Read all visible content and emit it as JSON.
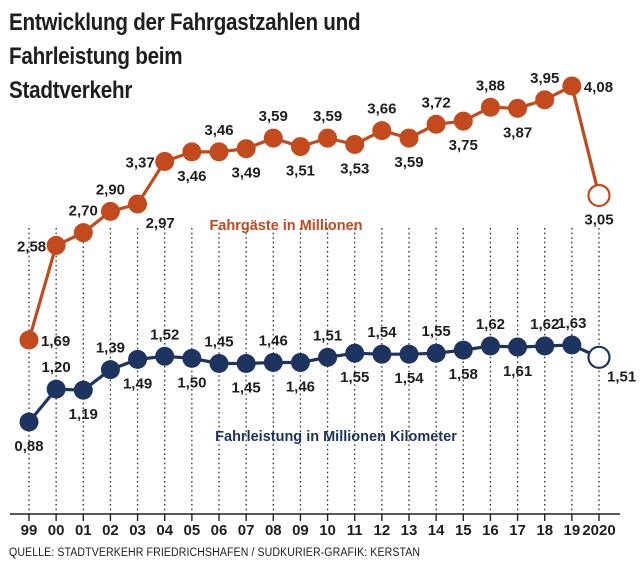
{
  "title_lines": [
    "Entwicklung der Fahrgastzahlen und",
    "Fahrleistung beim",
    "Stadtverkehr"
  ],
  "source": "QUELLE: STADTVERKEHR FRIEDRICHSHAFEN / SÜDKURIER-GRAFIK: KERSTAN",
  "colors": {
    "passengers": "#c24a1c",
    "mileage": "#1d3461",
    "grid": "#333333"
  },
  "chart_data": {
    "type": "line",
    "title": "Entwicklung der Fahrgastzahlen und Fahrleistung beim Stadtverkehr",
    "xlabel": "",
    "ylabel": "",
    "categories": [
      "99",
      "00",
      "01",
      "02",
      "03",
      "04",
      "05",
      "06",
      "07",
      "08",
      "09",
      "10",
      "11",
      "12",
      "13",
      "14",
      "15",
      "16",
      "17",
      "18",
      "19",
      "2020"
    ],
    "series": [
      {
        "name": "Fahrgäste in Millionen",
        "values": [
          1.69,
          2.58,
          2.7,
          2.9,
          2.97,
          3.37,
          3.46,
          3.46,
          3.49,
          3.59,
          3.51,
          3.59,
          3.53,
          3.66,
          3.59,
          3.72,
          3.75,
          3.88,
          3.87,
          3.95,
          4.08,
          3.05
        ],
        "labels": [
          "1,69",
          "2,58",
          "2,70",
          "2,90",
          "2,97",
          "3,37",
          "3,46",
          "3,46",
          "3,49",
          "3,59",
          "3,51",
          "3,59",
          "3,53",
          "3,66",
          "3,59",
          "3,72",
          "3,75",
          "3,88",
          "3,87",
          "3,95",
          "4,08",
          "3,05"
        ],
        "label_position": [
          "right",
          "left",
          "above",
          "above",
          "below-right",
          "left",
          "below",
          "above",
          "below",
          "above",
          "below",
          "above",
          "below",
          "above",
          "below",
          "above",
          "below",
          "above",
          "below",
          "above",
          "right",
          "below"
        ],
        "hollow_last": true
      },
      {
        "name": "Fahrleistung in Millionen Kilometer",
        "values": [
          0.88,
          1.2,
          1.19,
          1.39,
          1.49,
          1.52,
          1.5,
          1.45,
          1.45,
          1.46,
          1.46,
          1.51,
          1.55,
          1.54,
          1.54,
          1.55,
          1.58,
          1.62,
          1.61,
          1.62,
          1.63,
          1.51
        ],
        "labels": [
          "0,88",
          "1,20",
          "1,19",
          "1,39",
          "1,49",
          "1,52",
          "1,50",
          "1,45",
          "1,45",
          "1,46",
          "1,46",
          "1,51",
          "1,55",
          "1,54",
          "1,54",
          "1,55",
          "1,58",
          "1,62",
          "1,61",
          "1,62",
          "1,63",
          "1,51"
        ],
        "label_position": [
          "below",
          "above",
          "below",
          "above",
          "below",
          "above",
          "below",
          "above",
          "below",
          "above",
          "below",
          "above",
          "below",
          "above",
          "below",
          "above",
          "below",
          "above",
          "below",
          "above",
          "above",
          "below-right"
        ],
        "hollow_last": true
      }
    ]
  }
}
